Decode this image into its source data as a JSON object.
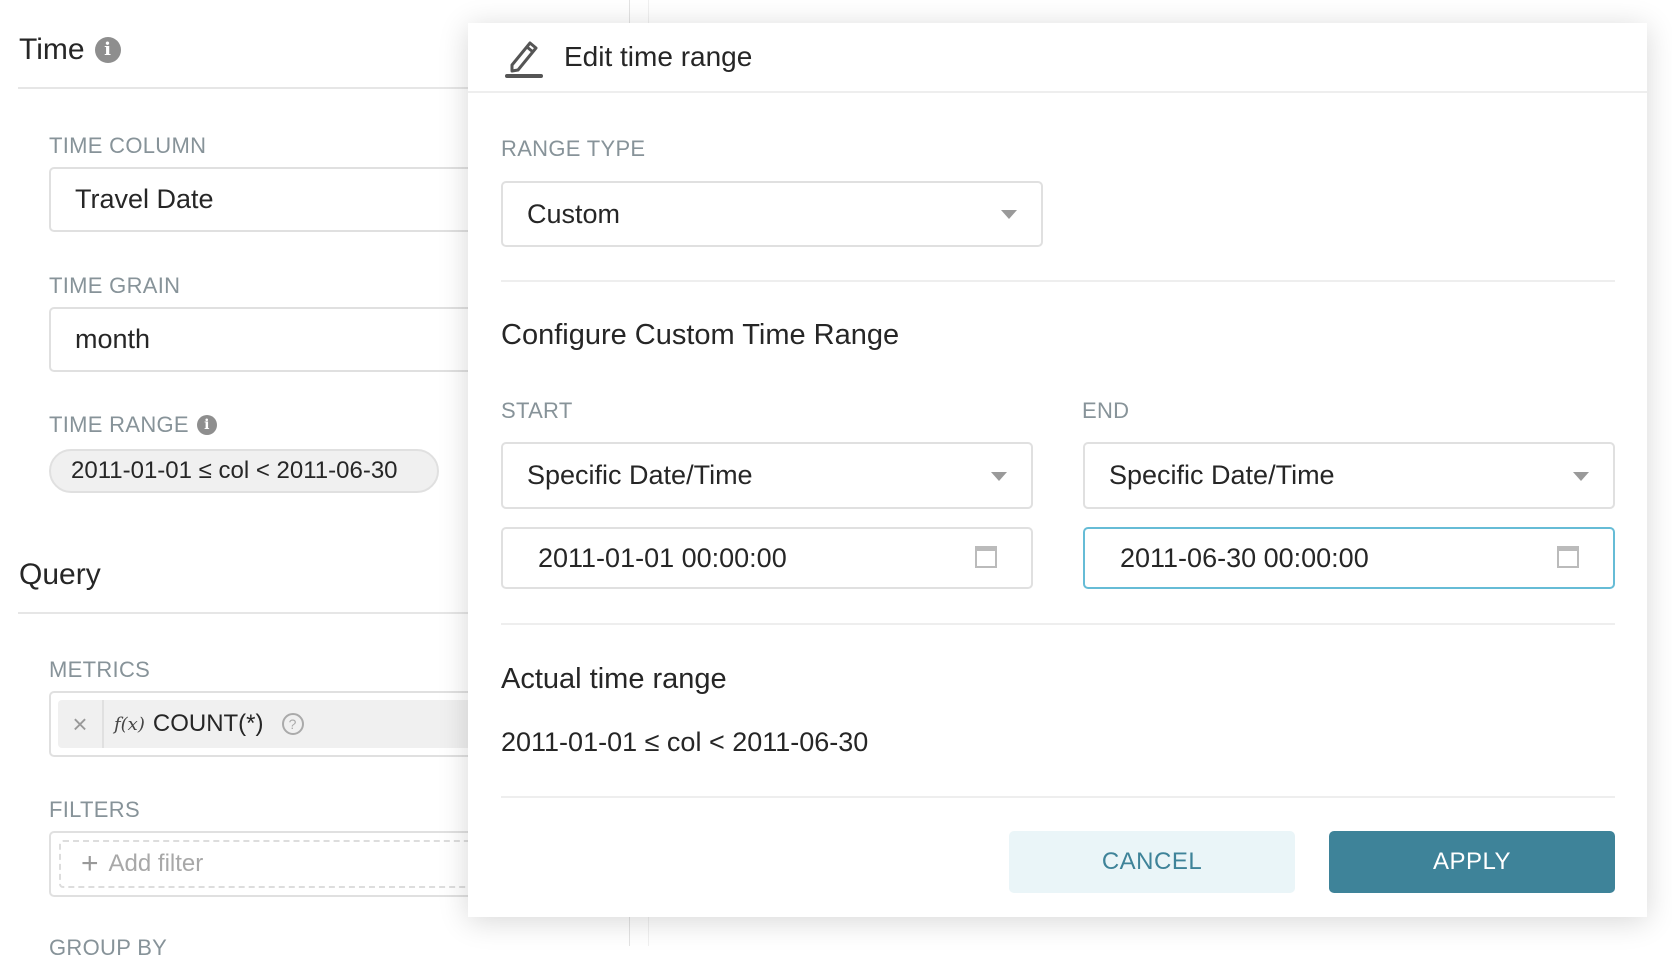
{
  "left_panel": {
    "time_section": {
      "title": "Time",
      "info_icon": "info-icon"
    },
    "time_column": {
      "label": "TIME COLUMN",
      "value": "Travel Date"
    },
    "time_grain": {
      "label": "TIME GRAIN",
      "value": "month"
    },
    "time_range": {
      "label": "TIME RANGE",
      "value": "2011-01-01 ≤ col < 2011-06-30"
    },
    "query_section": {
      "title": "Query"
    },
    "metrics": {
      "label": "METRICS",
      "chip_prefix": "f(x)",
      "chip_label": "COUNT(*)",
      "remove": "×"
    },
    "filters": {
      "label": "FILTERS",
      "placeholder": "Add filter"
    },
    "group_by": {
      "label": "GROUP BY"
    }
  },
  "modal": {
    "title": "Edit time range",
    "range_type": {
      "label": "RANGE TYPE",
      "value": "Custom"
    },
    "configure_title": "Configure Custom Time Range",
    "start": {
      "label": "START",
      "mode": "Specific Date/Time",
      "value": "2011-01-01 00:00:00"
    },
    "end": {
      "label": "END",
      "mode": "Specific Date/Time",
      "value": "2011-06-30 00:00:00"
    },
    "actual_title": "Actual time range",
    "actual_value": "2011-01-01 ≤ col < 2011-06-30",
    "cancel_label": "CANCEL",
    "apply_label": "APPLY"
  },
  "colors": {
    "primary": "#3e8399",
    "cancel_bg": "#eaf5f8",
    "focus_border": "#66bcd6",
    "label": "#879399"
  }
}
